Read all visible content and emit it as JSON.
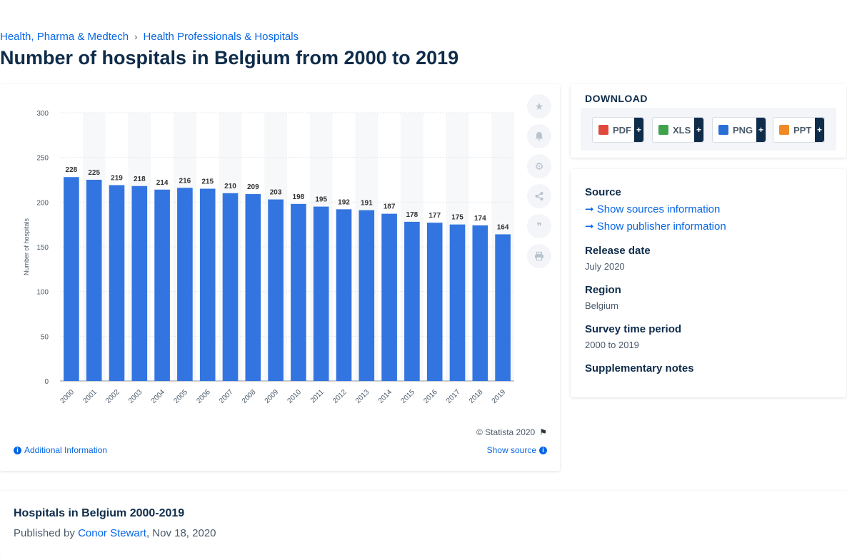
{
  "breadcrumb": {
    "parent": "Health, Pharma & Medtech",
    "separator": "›",
    "current": "Health Professionals & Hospitals"
  },
  "page_title": "Number of hospitals in Belgium from 2000 to 2019",
  "chart_data": {
    "type": "bar",
    "title": "",
    "xlabel": "",
    "ylabel": "Number of hospitals",
    "categories": [
      "2000",
      "2001",
      "2002",
      "2003",
      "2004",
      "2005",
      "2006",
      "2007",
      "2008",
      "2009",
      "2010",
      "2011",
      "2012",
      "2013",
      "2014",
      "2015",
      "2016",
      "2017",
      "2018",
      "2019"
    ],
    "values": [
      228,
      225,
      219,
      218,
      214,
      216,
      215,
      210,
      209,
      203,
      198,
      195,
      192,
      191,
      187,
      178,
      177,
      175,
      174,
      164
    ],
    "ylim": [
      0,
      300
    ],
    "yticks": [
      0,
      50,
      100,
      150,
      200,
      250,
      300
    ],
    "bar_color": "#3375e0",
    "grid": true,
    "data_labels": true
  },
  "chart_footer": {
    "copyright": "© Statista 2020",
    "additional_info": "Additional Information",
    "show_source": "Show source"
  },
  "tools": [
    "star-icon",
    "bell-icon",
    "gear-icon",
    "share-icon",
    "quote-icon",
    "print-icon"
  ],
  "download": {
    "title": "DOWNLOAD",
    "formats": [
      {
        "label": "PDF",
        "color": "#e04a3c"
      },
      {
        "label": "XLS",
        "color": "#3fa34d"
      },
      {
        "label": "PNG",
        "color": "#2a6fd6"
      },
      {
        "label": "PPT",
        "color": "#f08a24"
      }
    ],
    "plus": "+"
  },
  "meta": {
    "source_label": "Source",
    "show_sources": "Show sources information",
    "show_publisher": "Show publisher information",
    "release_label": "Release date",
    "release_value": "July 2020",
    "region_label": "Region",
    "region_value": "Belgium",
    "period_label": "Survey time period",
    "period_value": "2000 to 2019",
    "notes_label": "Supplementary notes"
  },
  "report": {
    "title": "Hospitals in Belgium 2000-2019",
    "published_by": "Published by ",
    "author": "Conor Stewart",
    "date": ", Nov 18, 2020"
  }
}
